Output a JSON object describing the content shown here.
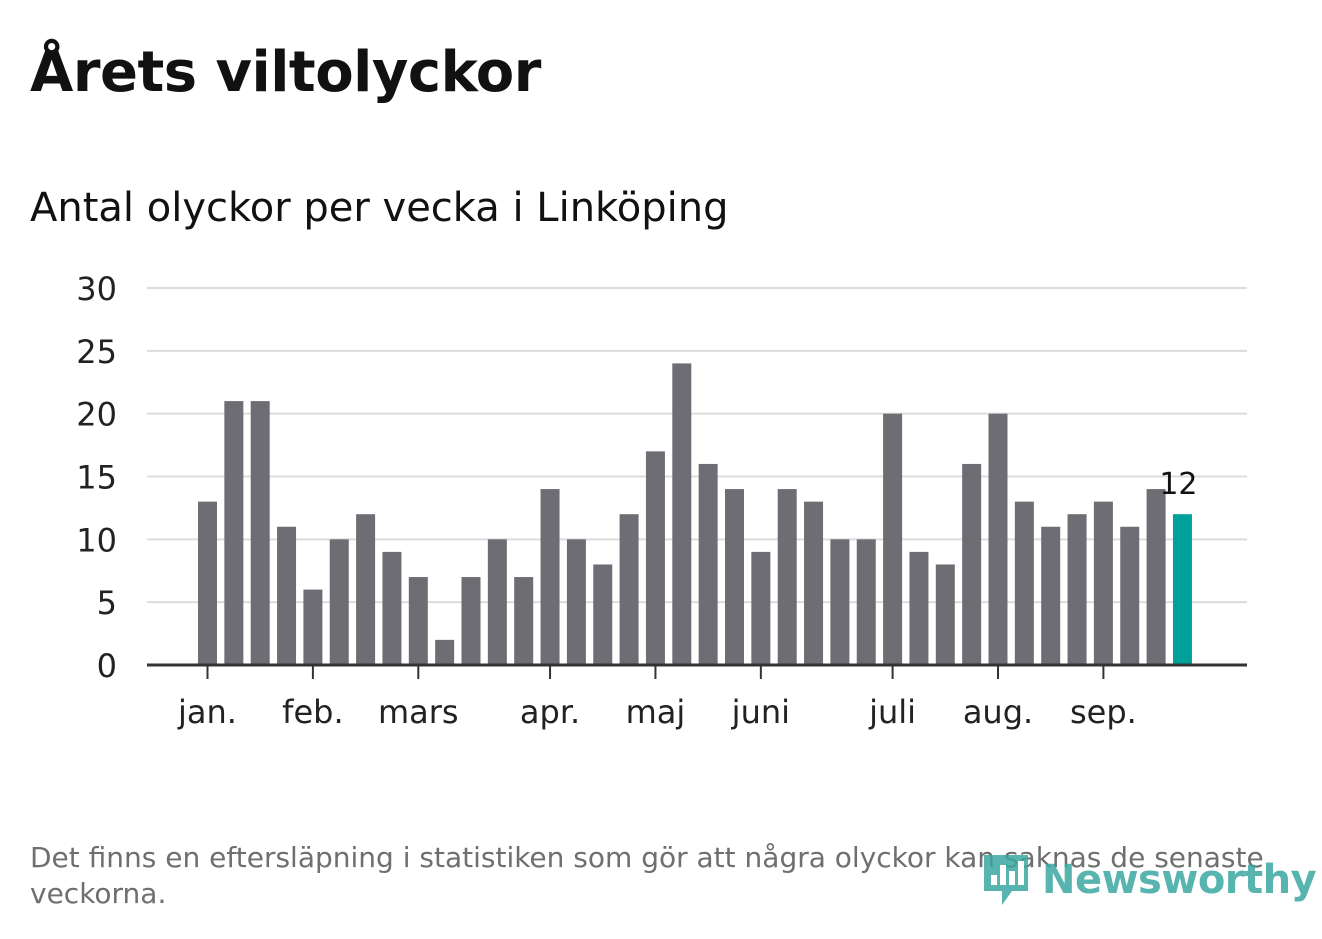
{
  "title": "Årets viltolyckor",
  "subtitle": "Antal olyckor per vecka i Linköping",
  "footnote": "Det finns en eftersläpning i statistiken som gör att några olyckor kan saknas de senaste veckorna.",
  "brand": {
    "name": "Newsworthy",
    "icon": "bar-chart-speech-bubble-icon",
    "color": "#3aa7a1"
  },
  "colors": {
    "bar": "#6e6d73",
    "highlight": "#00a19a",
    "grid": "#dcdcdc",
    "axis": "#333333"
  },
  "chart_data": {
    "type": "bar",
    "title": "Antal olyckor per vecka i Linköping",
    "xlabel": "",
    "ylabel": "",
    "ylim": [
      0,
      30
    ],
    "yticks": [
      0,
      5,
      10,
      15,
      20,
      25,
      30
    ],
    "grid": true,
    "values": [
      13,
      21,
      21,
      11,
      6,
      10,
      12,
      9,
      7,
      2,
      7,
      10,
      7,
      14,
      10,
      8,
      12,
      17,
      24,
      16,
      14,
      9,
      14,
      13,
      10,
      10,
      20,
      9,
      8,
      16,
      20,
      13,
      11,
      12,
      13,
      11,
      14,
      12
    ],
    "highlight_index": 37,
    "highlight_label": "12",
    "month_labels": [
      {
        "label": "jan.",
        "bar": 0
      },
      {
        "label": "feb.",
        "bar": 4
      },
      {
        "label": "mars",
        "bar": 8
      },
      {
        "label": "apr.",
        "bar": 13
      },
      {
        "label": "maj",
        "bar": 17
      },
      {
        "label": "juni",
        "bar": 21
      },
      {
        "label": "juli",
        "bar": 26
      },
      {
        "label": "aug.",
        "bar": 30
      },
      {
        "label": "sep.",
        "bar": 34
      }
    ]
  }
}
